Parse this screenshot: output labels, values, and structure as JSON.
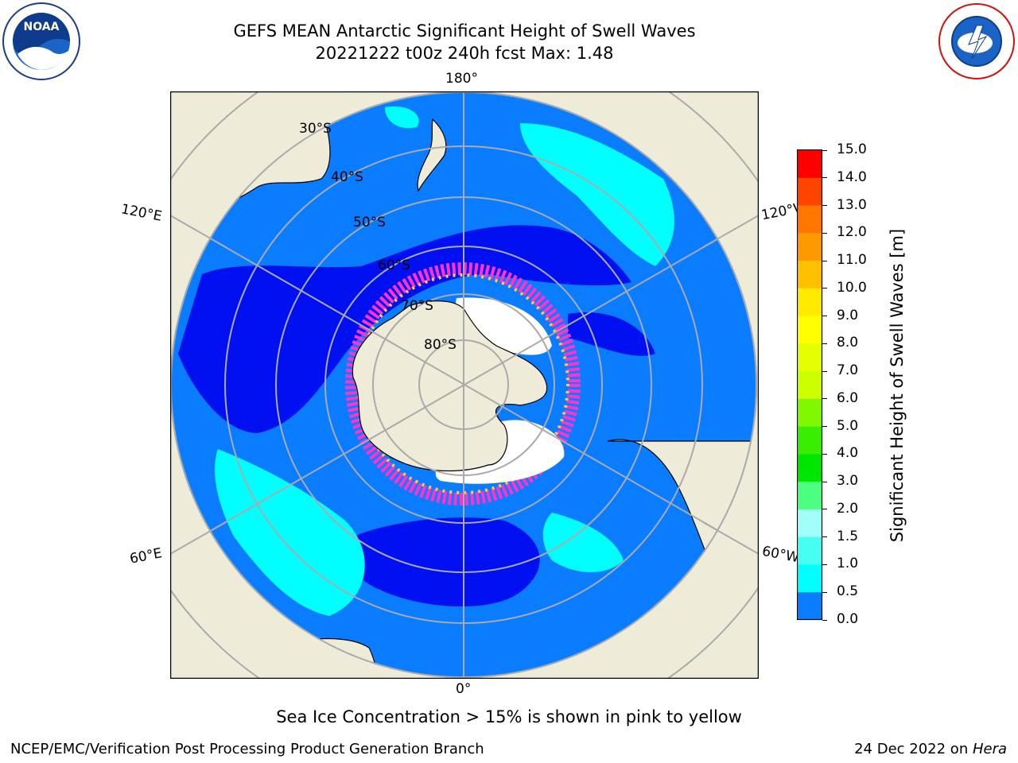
{
  "title": {
    "line1": "GEFS MEAN Antarctic Significant Height of Swell Waves",
    "line2": "20221222 t00z 240h fcst   Max: 1.48"
  },
  "map": {
    "projection": "south polar stereographic",
    "longitude_labels": {
      "top": "180°",
      "bottom": "0°",
      "upper_left": "120°E",
      "lower_left": "60°E",
      "upper_right": "120°W",
      "lower_right": "60°W"
    },
    "latitude_labels": [
      "30°S",
      "40°S",
      "50°S",
      "60°S",
      "70°S",
      "80°S"
    ],
    "colors": {
      "land": "#eeecd8",
      "ocean_light": "#0a7cff",
      "ocean_dark": "#0010f0",
      "swell_cyan": "#00ffff",
      "ice_pink": "#ff33cc",
      "ice_white": "#ffffff",
      "grid": "#aaaaaa"
    }
  },
  "colorbar": {
    "title": "Significant Height of Swell Waves [m]",
    "ticks": [
      "15.0",
      "14.0",
      "13.0",
      "12.0",
      "11.0",
      "10.0",
      "9.0",
      "8.0",
      "7.0",
      "6.0",
      "5.0",
      "4.0",
      "3.0",
      "2.0",
      "1.5",
      "1.0",
      "0.5",
      "0.0"
    ],
    "colors": [
      "#0000ff",
      "#0a7cff",
      "#00ffff",
      "#47fff0",
      "#a0fff8",
      "#4dff80",
      "#00e600",
      "#39ee00",
      "#80f800",
      "#ccff00",
      "#e6ff00",
      "#ffff00",
      "#ffea00",
      "#ffc000",
      "#ff9900",
      "#ff7700",
      "#ff4400",
      "#ff0000"
    ]
  },
  "caption": "Sea Ice Concentration > 15% is shown in pink to yellow",
  "footer": {
    "left": "NCEP/EMC/Verification Post Processing Product Generation Branch",
    "date": "24 Dec 2022 on ",
    "host": "Hera"
  },
  "logos": {
    "left": "NOAA",
    "right": "NATIONAL WEATHER SERVICE"
  }
}
